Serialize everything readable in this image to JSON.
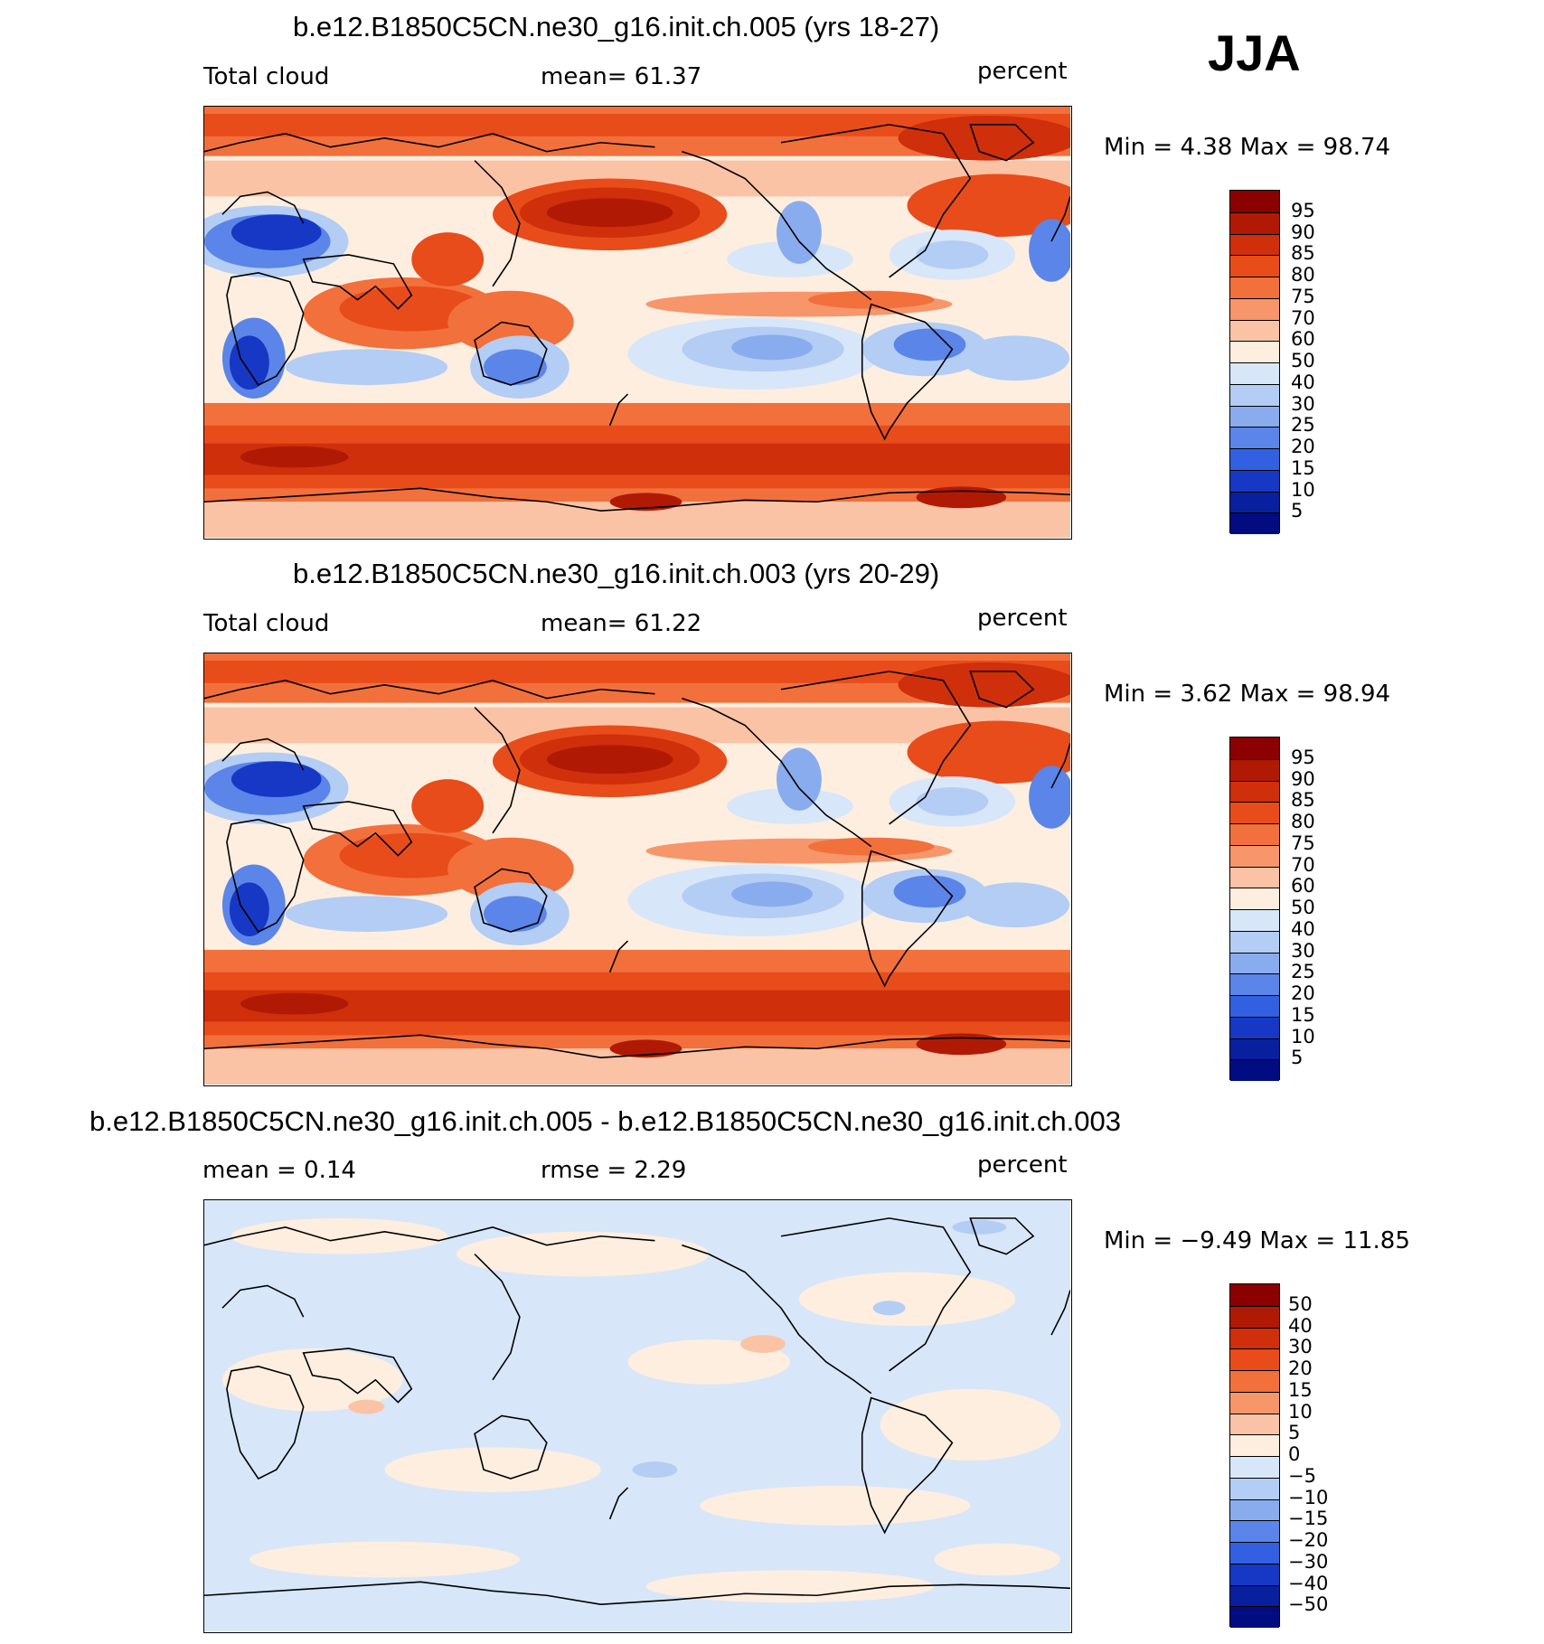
{
  "season": "JJA",
  "panels": [
    {
      "title": "b.e12.B1850C5CN.ne30_g16.init.ch.005 (yrs 18-27)",
      "left_label": "Total cloud",
      "center_label": "mean=   61.37",
      "right_label": "percent",
      "minmax": "Min =     4.38  Max =    98.74",
      "kind": "field",
      "colorbar_labels": [
        "95",
        "90",
        "85",
        "80",
        "75",
        "70",
        "60",
        "50",
        "40",
        "30",
        "25",
        "20",
        "15",
        "10",
        "5"
      ]
    },
    {
      "title": "b.e12.B1850C5CN.ne30_g16.init.ch.003 (yrs 20-29)",
      "left_label": "Total cloud",
      "center_label": "mean=   61.22",
      "right_label": "percent",
      "minmax": "Min =     3.62  Max =    98.94",
      "kind": "field",
      "colorbar_labels": [
        "95",
        "90",
        "85",
        "80",
        "75",
        "70",
        "60",
        "50",
        "40",
        "30",
        "25",
        "20",
        "15",
        "10",
        "5"
      ]
    },
    {
      "title": "b.e12.B1850C5CN.ne30_g16.init.ch.005 - b.e12.B1850C5CN.ne30_g16.init.ch.003",
      "left_label": "mean =     0.14",
      "center_label": "rmse =     2.29",
      "right_label": "percent",
      "minmax": "Min =   −9.49  Max =    11.85",
      "kind": "diff",
      "colorbar_labels": [
        "50",
        "40",
        "30",
        "20",
        "15",
        "10",
        "5",
        "0",
        "−5",
        "−10",
        "−15",
        "−20",
        "−30",
        "−40",
        "−50"
      ]
    }
  ],
  "colors": {
    "field": [
      "#8b0000",
      "#b01a05",
      "#cf2f0a",
      "#e84c1a",
      "#f2703c",
      "#f7966a",
      "#fbc3a5",
      "#fdeee0",
      "#d8e6f9",
      "#b3cdf4",
      "#89acee",
      "#5b85e8",
      "#3260e0",
      "#1638c4",
      "#08209e",
      "#000c80"
    ],
    "diff": [
      "#8b0000",
      "#b01a05",
      "#cf2f0a",
      "#e84c1a",
      "#f2703c",
      "#f7966a",
      "#fbc3a5",
      "#fdeee0",
      "#d8e6f9",
      "#b3cdf4",
      "#89acee",
      "#5b85e8",
      "#3260e0",
      "#1638c4",
      "#08209e",
      "#000c80"
    ]
  }
}
